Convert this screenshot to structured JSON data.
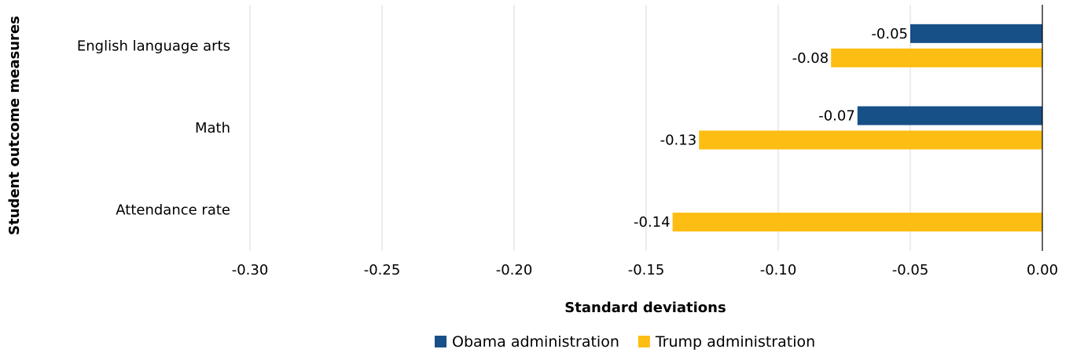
{
  "chart_data": {
    "type": "bar",
    "orientation": "horizontal",
    "categories": [
      "English language arts",
      "Math",
      "Attendance rate"
    ],
    "series": [
      {
        "name": "Obama administration",
        "color": "#174f87",
        "values": [
          -0.05,
          -0.07,
          null
        ]
      },
      {
        "name": "Trump administration",
        "color": "#fdbd12",
        "values": [
          -0.08,
          -0.13,
          -0.14
        ]
      }
    ],
    "data_labels": [
      [
        "-0.05",
        "-0.07",
        null
      ],
      [
        "-0.08",
        "-0.13",
        "-0.14"
      ]
    ],
    "xlabel": "Standard deviations",
    "ylabel": "Student outcome measures",
    "xlim": [
      -0.3,
      0.0
    ],
    "xticks": [
      -0.3,
      -0.25,
      -0.2,
      -0.15,
      -0.1,
      -0.05,
      0.0
    ],
    "xtick_labels": [
      "-0.30",
      "-0.25",
      "-0.20",
      "-0.15",
      "-0.10",
      "-0.05",
      "0.00"
    ],
    "grid": "vertical",
    "legend_position": "bottom"
  }
}
